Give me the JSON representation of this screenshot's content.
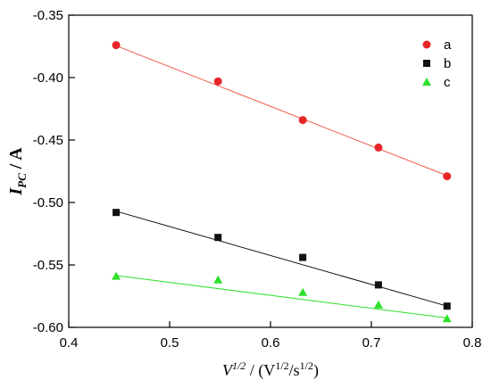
{
  "chart_data": {
    "type": "scatter",
    "xlabel_parts": {
      "var": "V",
      "var_exp": "1/2",
      "sep": " / (V",
      "unit_exp1": "1/2",
      "unit_mid": "/s",
      "unit_exp2": "1/2",
      "close": ")"
    },
    "ylabel_parts": {
      "var": "I",
      "sub": "PC",
      "rest": " / A"
    },
    "xlim": [
      0.4,
      0.8
    ],
    "ylim": [
      -0.6,
      -0.35
    ],
    "xticks": [
      {
        "value": 0.4,
        "label": "0.4"
      },
      {
        "value": 0.5,
        "label": "0.5"
      },
      {
        "value": 0.6,
        "label": "0.6"
      },
      {
        "value": 0.7,
        "label": "0.7"
      },
      {
        "value": 0.8,
        "label": "0.8"
      }
    ],
    "yticks": [
      {
        "value": -0.35,
        "label": "-0.35"
      },
      {
        "value": -0.4,
        "label": "-0.40"
      },
      {
        "value": -0.45,
        "label": "-0.45"
      },
      {
        "value": -0.5,
        "label": "-0.50"
      },
      {
        "value": -0.55,
        "label": "-0.55"
      },
      {
        "value": -0.6,
        "label": "-0.60"
      }
    ],
    "grid": false,
    "legend_position": "top-right",
    "series": [
      {
        "name": "a",
        "marker": "circle",
        "color": "#e8262a",
        "line_color": "#f0584c",
        "x": [
          0.447,
          0.548,
          0.632,
          0.707,
          0.775
        ],
        "y": [
          -0.374,
          -0.403,
          -0.434,
          -0.456,
          -0.479
        ],
        "fit": {
          "x": [
            0.447,
            0.775
          ],
          "y": [
            -0.3745,
            -0.4785
          ]
        }
      },
      {
        "name": "b",
        "marker": "square",
        "color": "#111111",
        "line_color": "#111111",
        "x": [
          0.447,
          0.548,
          0.632,
          0.707,
          0.775
        ],
        "y": [
          -0.508,
          -0.528,
          -0.544,
          -0.566,
          -0.583
        ],
        "fit": {
          "x": [
            0.447,
            0.775
          ],
          "y": [
            -0.507,
            -0.583
          ]
        }
      },
      {
        "name": "c",
        "marker": "triangle",
        "color": "#2fe02a",
        "line_color": "#2fe02a",
        "x": [
          0.447,
          0.548,
          0.632,
          0.707,
          0.775
        ],
        "y": [
          -0.559,
          -0.562,
          -0.572,
          -0.582,
          -0.593
        ],
        "fit": {
          "x": [
            0.447,
            0.775
          ],
          "y": [
            -0.5585,
            -0.5925
          ]
        }
      }
    ]
  }
}
